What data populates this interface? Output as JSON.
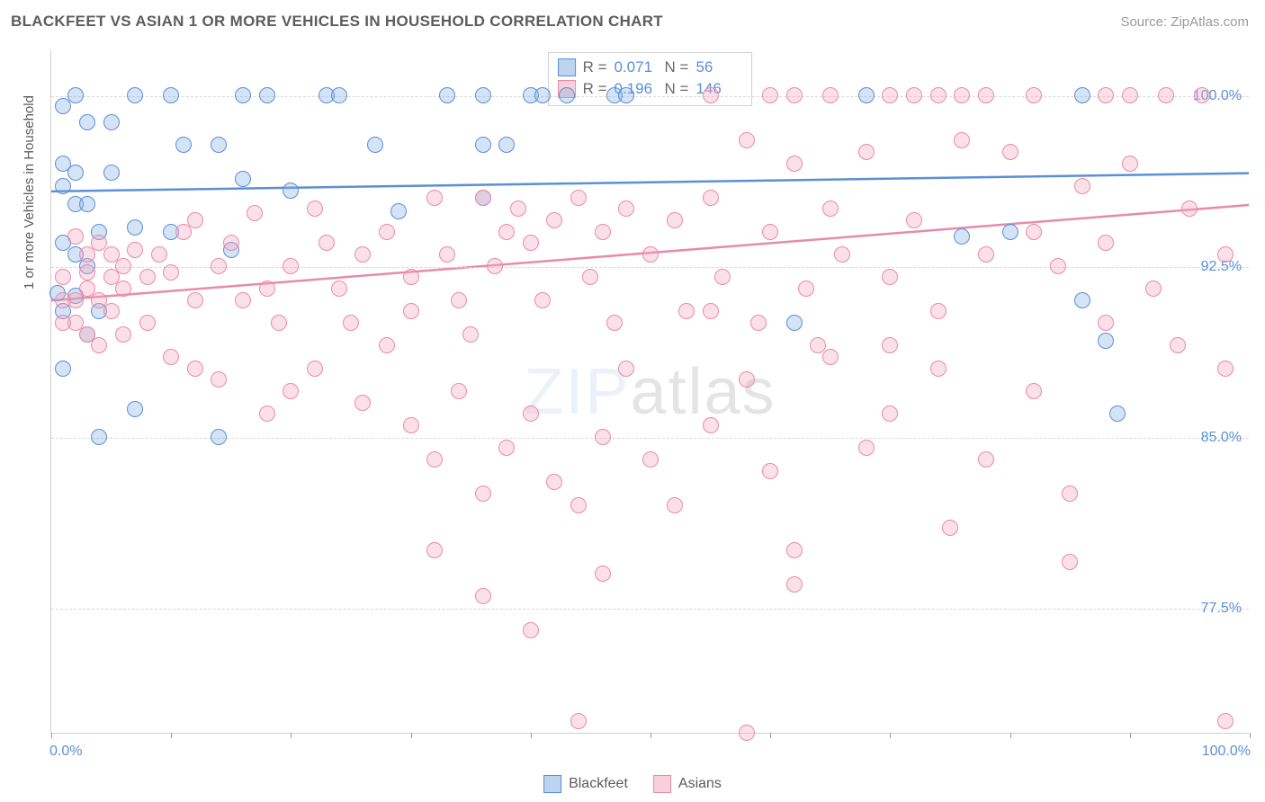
{
  "header": {
    "title": "BLACKFEET VS ASIAN 1 OR MORE VEHICLES IN HOUSEHOLD CORRELATION CHART",
    "source": "Source: ZipAtlas.com"
  },
  "chart": {
    "type": "scatter",
    "background_color": "#ffffff",
    "grid_color": "#d8d8d8",
    "axis_color": "#cfcfcf",
    "tick_label_color": "#5b8fd6",
    "tick_fontsize": 16,
    "axis_title_color": "#5c5c5c",
    "axis_title_fontsize": 15,
    "xlim": [
      0,
      100
    ],
    "ylim": [
      72,
      102
    ],
    "x_tick_positions": [
      0,
      10,
      20,
      30,
      40,
      50,
      60,
      70,
      80,
      90,
      100
    ],
    "x_tick_labels": {
      "0": "0.0%",
      "100": "100.0%"
    },
    "y_gridlines": [
      77.5,
      85.0,
      92.5,
      100.0
    ],
    "y_tick_labels": [
      "77.5%",
      "85.0%",
      "92.5%",
      "100.0%"
    ],
    "y_axis_title": "1 or more Vehicles in Household",
    "marker_radius": 9,
    "marker_border_width": 1.5,
    "trendline_width": 2.5,
    "watermark": {
      "text_left": "ZIP",
      "text_right": "atlas",
      "fontsize": 72,
      "opacity": 0.1,
      "left_color": "#4a7bc0"
    },
    "series": [
      {
        "name": "Blackfeet",
        "color": "#5b8fd6",
        "fill": "rgba(133,176,225,0.35)",
        "R": "0.071",
        "N": "56",
        "trend_y_at_x0": 95.8,
        "trend_y_at_x100": 96.6,
        "points": [
          [
            2,
            100
          ],
          [
            7,
            100
          ],
          [
            10,
            100
          ],
          [
            16,
            100
          ],
          [
            18,
            100
          ],
          [
            23,
            100
          ],
          [
            24,
            100
          ],
          [
            33,
            100
          ],
          [
            36,
            100
          ],
          [
            40,
            100
          ],
          [
            41,
            100
          ],
          [
            43,
            100
          ],
          [
            47,
            100
          ],
          [
            48,
            100
          ],
          [
            68,
            100
          ],
          [
            86,
            100
          ],
          [
            3,
            98.8
          ],
          [
            5,
            98.8
          ],
          [
            11,
            97.8
          ],
          [
            14,
            97.8
          ],
          [
            27,
            97.8
          ],
          [
            36,
            97.8
          ],
          [
            38,
            97.8
          ],
          [
            2,
            96.6
          ],
          [
            5,
            96.6
          ],
          [
            16,
            96.3
          ],
          [
            20,
            95.8
          ],
          [
            2,
            95.2
          ],
          [
            3,
            95.2
          ],
          [
            7,
            94.2
          ],
          [
            4,
            94.0
          ],
          [
            10,
            94.0
          ],
          [
            15,
            93.2
          ],
          [
            29,
            94.9
          ],
          [
            36,
            95.5
          ],
          [
            2,
            93.0
          ],
          [
            3,
            92.5
          ],
          [
            2,
            91.2
          ],
          [
            4,
            90.5
          ],
          [
            62,
            90.0
          ],
          [
            3,
            89.5
          ],
          [
            7,
            86.2
          ],
          [
            14,
            85.0
          ],
          [
            4,
            85.0
          ],
          [
            76,
            93.8
          ],
          [
            80,
            94.0
          ],
          [
            86,
            91.0
          ],
          [
            88,
            89.2
          ],
          [
            89,
            86.0
          ],
          [
            1,
            99.5
          ],
          [
            1,
            97.0
          ],
          [
            1,
            96.0
          ],
          [
            1,
            93.5
          ],
          [
            1,
            90.5
          ],
          [
            1,
            88.0
          ],
          [
            0.5,
            91.3
          ]
        ]
      },
      {
        "name": "Asians",
        "color": "#e98aa9",
        "fill": "rgba(246,167,189,0.35)",
        "R": "0.196",
        "N": "146",
        "trend_y_at_x0": 91.0,
        "trend_y_at_x100": 95.2,
        "points": [
          [
            55,
            100
          ],
          [
            60,
            100
          ],
          [
            62,
            100
          ],
          [
            65,
            100
          ],
          [
            70,
            100
          ],
          [
            72,
            100
          ],
          [
            74,
            100
          ],
          [
            76,
            100
          ],
          [
            78,
            100
          ],
          [
            82,
            100
          ],
          [
            88,
            100
          ],
          [
            90,
            100
          ],
          [
            93,
            100
          ],
          [
            96,
            100
          ],
          [
            2,
            93.8
          ],
          [
            3,
            93.0
          ],
          [
            3,
            92.2
          ],
          [
            4,
            93.5
          ],
          [
            5,
            93.0
          ],
          [
            5,
            92.0
          ],
          [
            6,
            92.5
          ],
          [
            7,
            93.2
          ],
          [
            8,
            92.0
          ],
          [
            9,
            93.0
          ],
          [
            10,
            92.2
          ],
          [
            11,
            94.0
          ],
          [
            12,
            94.5
          ],
          [
            12,
            91.0
          ],
          [
            14,
            92.5
          ],
          [
            15,
            93.5
          ],
          [
            16,
            91.0
          ],
          [
            17,
            94.8
          ],
          [
            18,
            91.5
          ],
          [
            19,
            90.0
          ],
          [
            20,
            92.5
          ],
          [
            22,
            95.0
          ],
          [
            23,
            93.5
          ],
          [
            24,
            91.5
          ],
          [
            25,
            90.0
          ],
          [
            26,
            93.0
          ],
          [
            28,
            94.0
          ],
          [
            30,
            92.0
          ],
          [
            30,
            90.5
          ],
          [
            32,
            95.5
          ],
          [
            33,
            93.0
          ],
          [
            34,
            91.0
          ],
          [
            35,
            89.5
          ],
          [
            36,
            95.5
          ],
          [
            37,
            92.5
          ],
          [
            38,
            94.0
          ],
          [
            39,
            95.0
          ],
          [
            40,
            93.5
          ],
          [
            41,
            91.0
          ],
          [
            42,
            94.5
          ],
          [
            44,
            95.5
          ],
          [
            45,
            92.0
          ],
          [
            46,
            94.0
          ],
          [
            47,
            90.0
          ],
          [
            48,
            95.0
          ],
          [
            50,
            93.0
          ],
          [
            52,
            94.5
          ],
          [
            53,
            90.5
          ],
          [
            55,
            95.5
          ],
          [
            56,
            92.0
          ],
          [
            58,
            98.0
          ],
          [
            59,
            90.0
          ],
          [
            60,
            94.0
          ],
          [
            62,
            97.0
          ],
          [
            63,
            91.5
          ],
          [
            64,
            89.0
          ],
          [
            65,
            95.0
          ],
          [
            66,
            93.0
          ],
          [
            68,
            97.5
          ],
          [
            70,
            92.0
          ],
          [
            72,
            94.5
          ],
          [
            74,
            90.5
          ],
          [
            76,
            98.0
          ],
          [
            78,
            93.0
          ],
          [
            80,
            97.5
          ],
          [
            82,
            94.0
          ],
          [
            84,
            92.5
          ],
          [
            86,
            96.0
          ],
          [
            88,
            93.5
          ],
          [
            90,
            97.0
          ],
          [
            92,
            91.5
          ],
          [
            95,
            95.0
          ],
          [
            98,
            93.0
          ],
          [
            6,
            89.5
          ],
          [
            10,
            88.5
          ],
          [
            14,
            87.5
          ],
          [
            18,
            86.0
          ],
          [
            22,
            88.0
          ],
          [
            26,
            86.5
          ],
          [
            28,
            89.0
          ],
          [
            30,
            85.5
          ],
          [
            32,
            84.0
          ],
          [
            34,
            87.0
          ],
          [
            36,
            82.5
          ],
          [
            38,
            84.5
          ],
          [
            40,
            86.0
          ],
          [
            42,
            83.0
          ],
          [
            44,
            82.0
          ],
          [
            46,
            85.0
          ],
          [
            48,
            88.0
          ],
          [
            50,
            84.0
          ],
          [
            52,
            82.0
          ],
          [
            55,
            85.5
          ],
          [
            58,
            87.5
          ],
          [
            60,
            83.5
          ],
          [
            62,
            80.0
          ],
          [
            65,
            88.5
          ],
          [
            68,
            84.5
          ],
          [
            70,
            86.0
          ],
          [
            74,
            88.0
          ],
          [
            78,
            84.0
          ],
          [
            82,
            87.0
          ],
          [
            85,
            82.5
          ],
          [
            32,
            80.0
          ],
          [
            36,
            78.0
          ],
          [
            40,
            76.5
          ],
          [
            44,
            72.5
          ],
          [
            46,
            79.0
          ],
          [
            58,
            72.0
          ],
          [
            62,
            78.5
          ],
          [
            75,
            81.0
          ],
          [
            85,
            79.5
          ],
          [
            98,
            72.5
          ],
          [
            3,
            91.5
          ],
          [
            4,
            91.0
          ],
          [
            5,
            90.5
          ],
          [
            6,
            91.5
          ],
          [
            8,
            90.0
          ],
          [
            2,
            91.0
          ],
          [
            2,
            90.0
          ],
          [
            3,
            89.5
          ],
          [
            4,
            89.0
          ],
          [
            1,
            92.0
          ],
          [
            1,
            91.0
          ],
          [
            1,
            90.0
          ],
          [
            12,
            88.0
          ],
          [
            20,
            87.0
          ],
          [
            55,
            90.5
          ],
          [
            70,
            89.0
          ],
          [
            88,
            90.0
          ],
          [
            94,
            89.0
          ],
          [
            98,
            88.0
          ]
        ]
      }
    ],
    "bottom_legend": [
      {
        "label": "Blackfeet",
        "swatch": "a"
      },
      {
        "label": "Asians",
        "swatch": "b"
      }
    ]
  }
}
